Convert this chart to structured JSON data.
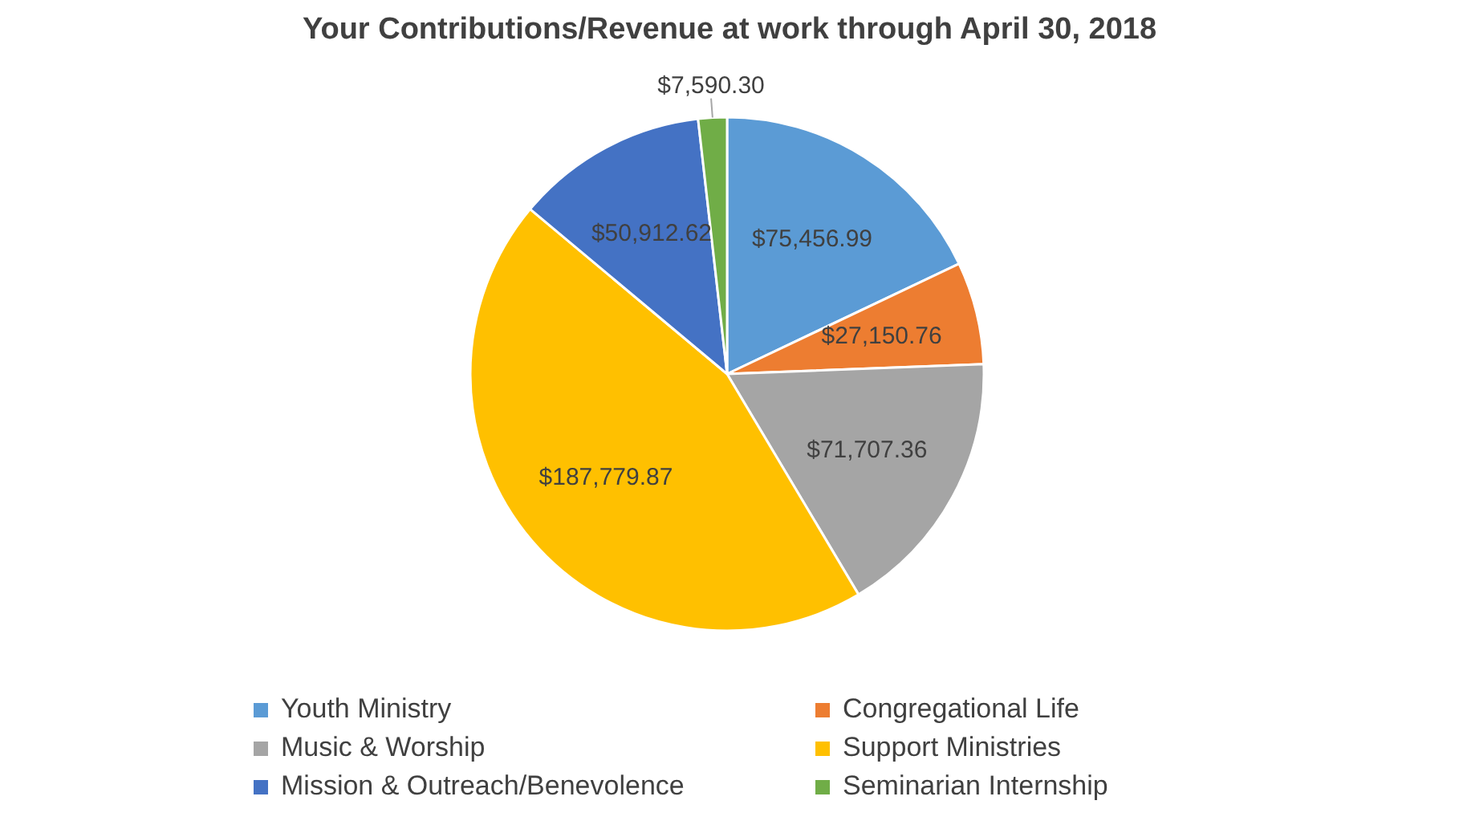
{
  "chart_data": {
    "type": "pie",
    "title": "Your Contributions/Revenue at work through April 30, 2018",
    "categories": [
      "Youth Ministry",
      "Congregational Life",
      "Music & Worship",
      "Support Ministries",
      "Mission & Outreach/Benevolence",
      "Seminarian Internship"
    ],
    "values": [
      75456.99,
      27150.76,
      71707.36,
      187779.87,
      50912.62,
      7590.3
    ],
    "value_labels": [
      "$75,456.99",
      "$27,150.76",
      "$71,707.36",
      "$187,779.87",
      "$50,912.62",
      "$7,590.30"
    ],
    "colors": [
      "#5b9bd5",
      "#ed7d31",
      "#a5a5a5",
      "#ffc000",
      "#4472c4",
      "#70ad47"
    ],
    "legend": "bottom"
  }
}
